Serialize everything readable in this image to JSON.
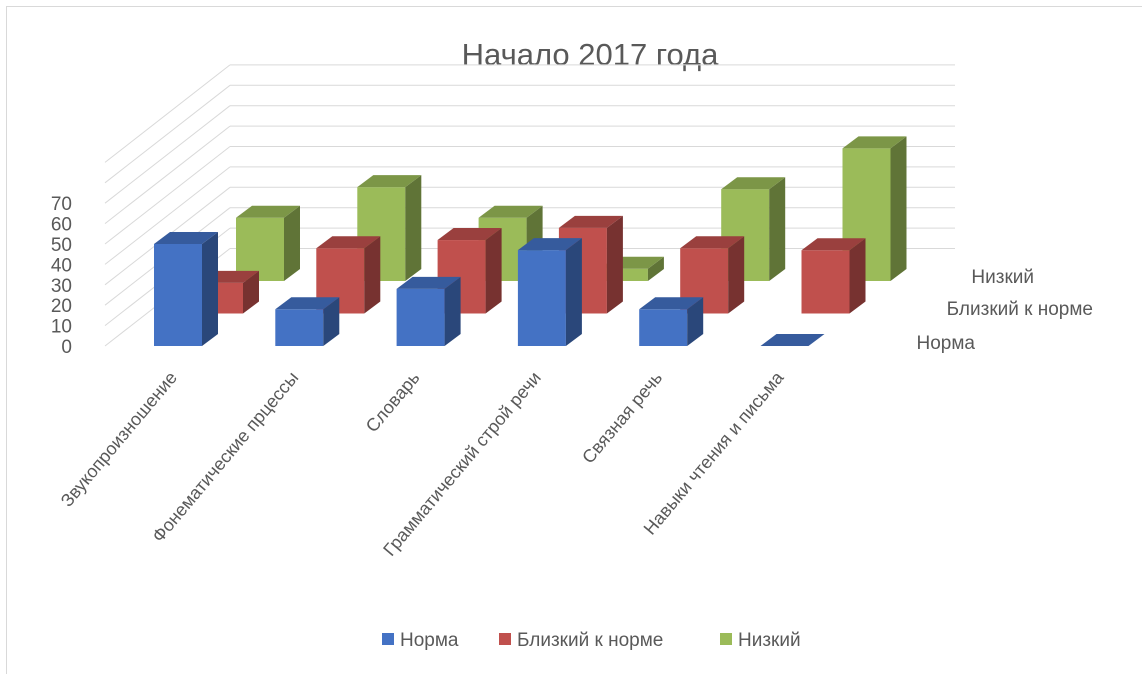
{
  "chart_data": {
    "type": "bar",
    "title": "Начало 2017 года",
    "categories": [
      "Звукопроизношение",
      "Фонематические прцессы",
      "Словарь",
      "Грамматический строй речи",
      "Связная речь",
      "Навыки чтения и письма"
    ],
    "series": [
      {
        "name": "Норма",
        "values": [
          50,
          18,
          28,
          47,
          18,
          0
        ],
        "color": "#4472c4"
      },
      {
        "name": "Близкий к норме",
        "values": [
          15,
          32,
          36,
          42,
          32,
          31
        ],
        "color": "#c0504d"
      },
      {
        "name": "Низкий",
        "values": [
          31,
          46,
          31,
          6,
          45,
          65
        ],
        "color": "#9bbb59"
      }
    ],
    "yticks": [
      "0",
      "10",
      "20",
      "30",
      "40",
      "50",
      "60",
      "70"
    ],
    "ylim": [
      0,
      70
    ],
    "depth_axis_labels": [
      "Норма",
      "Близкий к норме",
      "Низкий"
    ],
    "legend_position": "bottom",
    "grid": true
  }
}
